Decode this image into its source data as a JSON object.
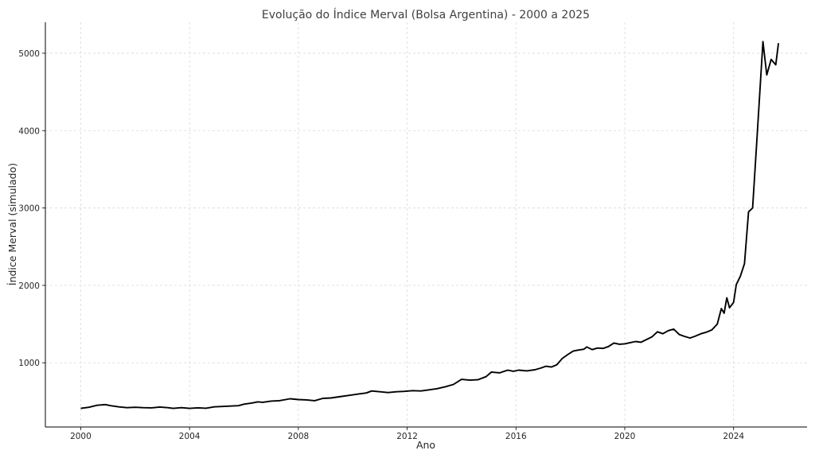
{
  "chart_data": {
    "type": "line",
    "title": "Evolução do Índice Merval (Bolsa Argentina) - 2000 a 2025",
    "xlabel": "Ano",
    "ylabel": "Índice Merval (simulado)",
    "xlim": [
      1998.7,
      2026.7
    ],
    "ylim": [
      170,
      5400
    ],
    "x_ticks": [
      2000,
      2004,
      2008,
      2012,
      2016,
      2020,
      2024
    ],
    "y_ticks": [
      1000,
      2000,
      3000,
      4000,
      5000
    ],
    "grid": true,
    "line_color": "#000000",
    "series": [
      {
        "points": [
          [
            2000.0,
            410
          ],
          [
            2000.3,
            425
          ],
          [
            2000.6,
            450
          ],
          [
            2000.9,
            460
          ],
          [
            2001.1,
            445
          ],
          [
            2001.4,
            430
          ],
          [
            2001.7,
            420
          ],
          [
            2002.0,
            425
          ],
          [
            2002.3,
            420
          ],
          [
            2002.6,
            418
          ],
          [
            2002.9,
            428
          ],
          [
            2003.2,
            420
          ],
          [
            2003.4,
            410
          ],
          [
            2003.7,
            420
          ],
          [
            2004.0,
            410
          ],
          [
            2004.3,
            418
          ],
          [
            2004.6,
            412
          ],
          [
            2004.9,
            430
          ],
          [
            2005.2,
            435
          ],
          [
            2005.5,
            440
          ],
          [
            2005.8,
            445
          ],
          [
            2006.0,
            465
          ],
          [
            2006.3,
            480
          ],
          [
            2006.5,
            495
          ],
          [
            2006.7,
            490
          ],
          [
            2007.0,
            505
          ],
          [
            2007.3,
            510
          ],
          [
            2007.7,
            535
          ],
          [
            2008.0,
            525
          ],
          [
            2008.3,
            520
          ],
          [
            2008.6,
            510
          ],
          [
            2008.9,
            540
          ],
          [
            2009.2,
            545
          ],
          [
            2009.5,
            560
          ],
          [
            2009.9,
            580
          ],
          [
            2010.2,
            595
          ],
          [
            2010.5,
            610
          ],
          [
            2010.7,
            635
          ],
          [
            2011.0,
            625
          ],
          [
            2011.3,
            615
          ],
          [
            2011.6,
            625
          ],
          [
            2011.9,
            630
          ],
          [
            2012.2,
            640
          ],
          [
            2012.5,
            635
          ],
          [
            2012.8,
            650
          ],
          [
            2013.1,
            665
          ],
          [
            2013.4,
            690
          ],
          [
            2013.7,
            720
          ],
          [
            2014.0,
            785
          ],
          [
            2014.3,
            775
          ],
          [
            2014.6,
            780
          ],
          [
            2014.9,
            820
          ],
          [
            2015.1,
            880
          ],
          [
            2015.4,
            870
          ],
          [
            2015.7,
            905
          ],
          [
            2015.9,
            890
          ],
          [
            2016.1,
            905
          ],
          [
            2016.4,
            895
          ],
          [
            2016.7,
            910
          ],
          [
            2016.9,
            930
          ],
          [
            2017.1,
            955
          ],
          [
            2017.3,
            945
          ],
          [
            2017.5,
            975
          ],
          [
            2017.7,
            1055
          ],
          [
            2017.9,
            1105
          ],
          [
            2018.1,
            1150
          ],
          [
            2018.3,
            1165
          ],
          [
            2018.5,
            1175
          ],
          [
            2018.6,
            1205
          ],
          [
            2018.8,
            1170
          ],
          [
            2019.0,
            1190
          ],
          [
            2019.2,
            1185
          ],
          [
            2019.4,
            1210
          ],
          [
            2019.6,
            1255
          ],
          [
            2019.8,
            1240
          ],
          [
            2020.0,
            1245
          ],
          [
            2020.2,
            1260
          ],
          [
            2020.4,
            1275
          ],
          [
            2020.6,
            1265
          ],
          [
            2020.8,
            1300
          ],
          [
            2021.0,
            1335
          ],
          [
            2021.2,
            1400
          ],
          [
            2021.4,
            1375
          ],
          [
            2021.6,
            1415
          ],
          [
            2021.8,
            1435
          ],
          [
            2022.0,
            1365
          ],
          [
            2022.2,
            1340
          ],
          [
            2022.4,
            1320
          ],
          [
            2022.6,
            1345
          ],
          [
            2022.8,
            1375
          ],
          [
            2023.0,
            1395
          ],
          [
            2023.2,
            1425
          ],
          [
            2023.4,
            1500
          ],
          [
            2023.55,
            1700
          ],
          [
            2023.65,
            1640
          ],
          [
            2023.75,
            1840
          ],
          [
            2023.85,
            1710
          ],
          [
            2024.0,
            1780
          ],
          [
            2024.1,
            2010
          ],
          [
            2024.25,
            2120
          ],
          [
            2024.4,
            2280
          ],
          [
            2024.55,
            2950
          ],
          [
            2024.7,
            3000
          ],
          [
            2024.85,
            3850
          ],
          [
            2025.0,
            4700
          ],
          [
            2025.08,
            5150
          ],
          [
            2025.22,
            4720
          ],
          [
            2025.38,
            4920
          ],
          [
            2025.55,
            4850
          ],
          [
            2025.65,
            5130
          ]
        ]
      }
    ]
  }
}
